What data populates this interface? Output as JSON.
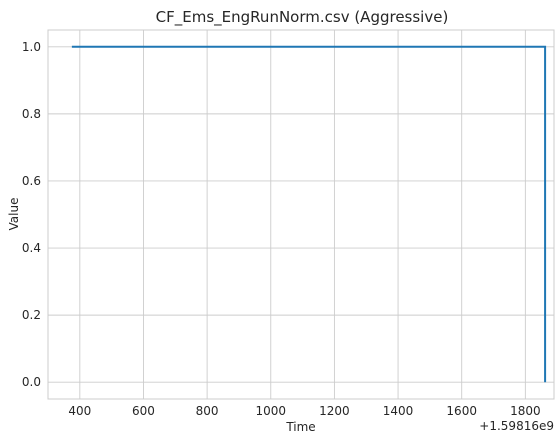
{
  "chart_data": {
    "type": "line",
    "title": "CF_Ems_EngRunNorm.csv (Aggressive)",
    "xlabel": "Time",
    "ylabel": "Value",
    "x_offset_label": "+1.59816e9",
    "xlim": [
      300,
      1890
    ],
    "ylim": [
      -0.05,
      1.05
    ],
    "x_ticks": [
      400,
      600,
      800,
      1000,
      1200,
      1400,
      1600,
      1800
    ],
    "x_tick_labels": [
      "400",
      "600",
      "800",
      "1000",
      "1200",
      "1400",
      "1600",
      "1800"
    ],
    "y_ticks": [
      0.0,
      0.2,
      0.4,
      0.6,
      0.8,
      1.0
    ],
    "y_tick_labels": [
      "0.0",
      "0.2",
      "0.4",
      "0.6",
      "0.8",
      "1.0"
    ],
    "grid": true,
    "legend": "none",
    "series": [
      {
        "color": "#1f77b4",
        "x": [
          375,
          1862,
          1862
        ],
        "y": [
          1.0,
          1.0,
          0.0
        ]
      }
    ]
  }
}
